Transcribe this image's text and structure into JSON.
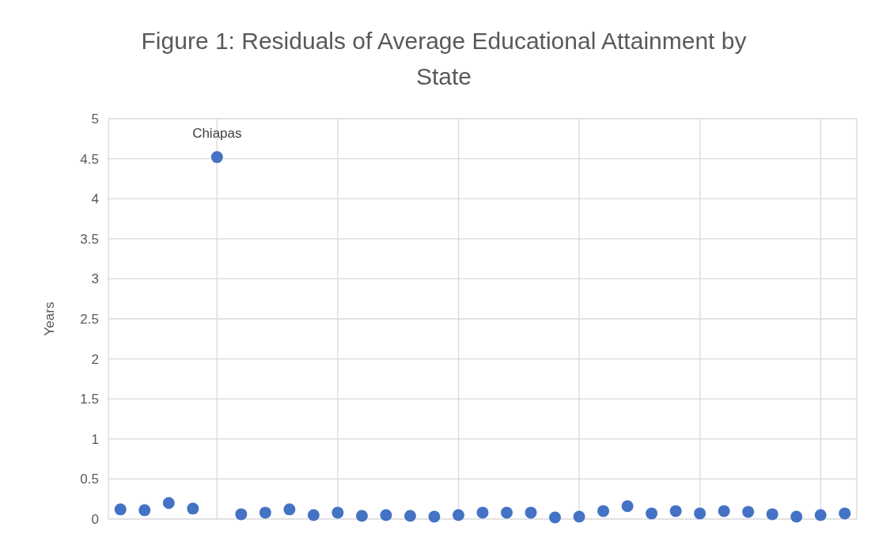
{
  "chart_data": {
    "type": "scatter",
    "title": "Figure 1: Residuals of Average Educational Attainment by State",
    "ylabel": "Years",
    "categories": [
      null,
      null,
      null,
      null,
      null,
      null,
      null,
      null,
      null,
      null,
      null,
      null,
      null,
      null,
      null,
      null,
      null,
      null,
      null,
      null,
      null,
      null,
      null,
      null,
      null,
      null,
      null,
      null,
      null,
      null,
      null
    ],
    "series": [
      {
        "color": "#4472c4",
        "values": [
          0.12,
          0.11,
          0.2,
          0.13,
          4.52,
          0.06,
          0.08,
          0.12,
          0.05,
          0.08,
          0.04,
          0.05,
          0.04,
          0.03,
          0.05,
          0.08,
          0.08,
          0.08,
          0.02,
          0.03,
          0.1,
          0.16,
          0.07,
          0.1,
          0.07,
          0.1,
          0.09,
          0.06,
          0.03,
          0.05,
          0.07
        ]
      }
    ],
    "ylim": [
      0,
      5
    ],
    "yticks": [
      0,
      0.5,
      1,
      1.5,
      2,
      2.5,
      3,
      3.5,
      4,
      4.5,
      5
    ],
    "grid": true,
    "marker": "circle",
    "annotations": [
      {
        "text": "Chiapas",
        "y": 4.52
      }
    ]
  }
}
